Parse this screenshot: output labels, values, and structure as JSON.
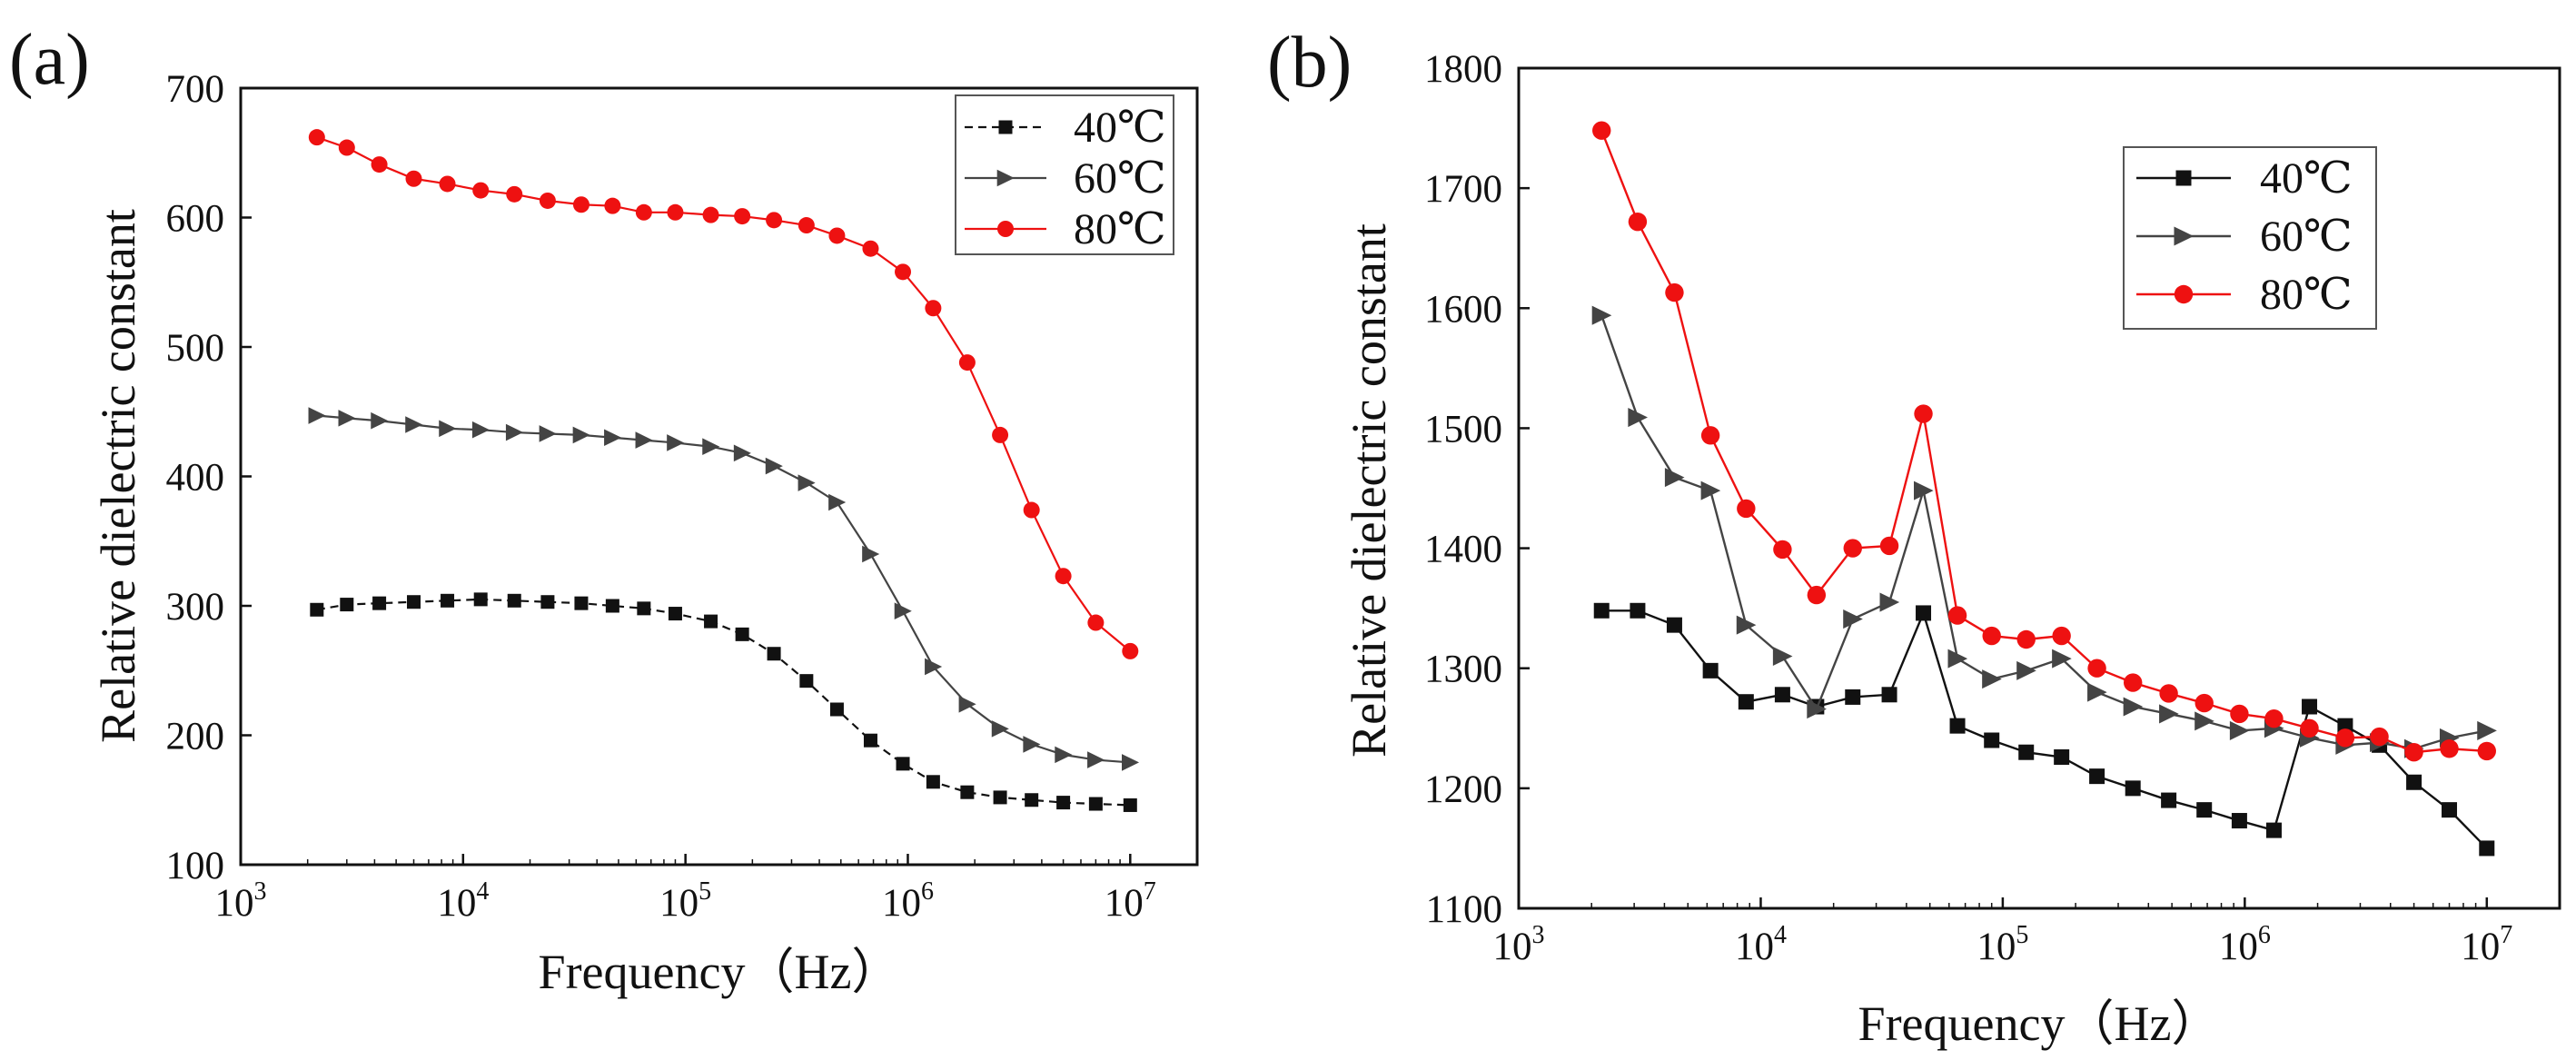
{
  "figure": {
    "panels": [
      "(a)",
      "(b)"
    ]
  },
  "chart_data": [
    {
      "type": "line",
      "panel_label": "(a)",
      "xlabel": "Frequency（Hz）",
      "ylabel": "Relative dielectric constant",
      "xscale": "log",
      "xlim": [
        1000,
        20000000
      ],
      "ylim": [
        100,
        700
      ],
      "xticks": [
        {
          "base": "10",
          "exp": "3",
          "value": 1000
        },
        {
          "base": "10",
          "exp": "4",
          "value": 10000
        },
        {
          "base": "10",
          "exp": "5",
          "value": 100000
        },
        {
          "base": "10",
          "exp": "6",
          "value": 1000000
        },
        {
          "base": "10",
          "exp": "7",
          "value": 10000000
        }
      ],
      "yticks": [
        "100",
        "200",
        "300",
        "400",
        "500",
        "600",
        "700"
      ],
      "legend_position": "top-right",
      "x": [
        2200,
        3000,
        4200,
        6000,
        8500,
        12000,
        17000,
        24000,
        34000,
        47000,
        65000,
        90000,
        130000,
        180000,
        250000,
        350000,
        480000,
        680000,
        950000,
        1300000,
        1850000,
        2600000,
        3600000,
        5000000,
        7000000,
        10000000
      ],
      "series": [
        {
          "name": "40℃",
          "color": "#111111",
          "marker": "square",
          "line": "dashed",
          "values": [
            297,
            301,
            302,
            303,
            304,
            305,
            304,
            303,
            302,
            300,
            298,
            294,
            288,
            278,
            263,
            242,
            220,
            196,
            178,
            164,
            156,
            152,
            150,
            148,
            147,
            146
          ]
        },
        {
          "name": "60℃",
          "color": "#444444",
          "marker": "triangle-right",
          "line": "solid",
          "values": [
            447,
            445,
            443,
            440,
            437,
            436,
            434,
            433,
            432,
            430,
            428,
            426,
            423,
            418,
            408,
            395,
            380,
            340,
            296,
            253,
            224,
            205,
            193,
            185,
            181,
            179
          ]
        },
        {
          "name": "80℃",
          "color": "#ee1111",
          "marker": "circle",
          "line": "solid",
          "values": [
            662,
            654,
            641,
            630,
            626,
            621,
            618,
            613,
            610,
            609,
            604,
            604,
            602,
            601,
            598,
            594,
            586,
            576,
            558,
            530,
            488,
            432,
            374,
            323,
            287,
            265
          ]
        }
      ]
    },
    {
      "type": "line",
      "panel_label": "(b)",
      "xlabel": "Frequency（Hz）",
      "ylabel": "Relative dielectric constant",
      "xscale": "log",
      "xlim": [
        1000,
        20000000
      ],
      "ylim": [
        1100,
        1800
      ],
      "xticks": [
        {
          "base": "10",
          "exp": "3",
          "value": 1000
        },
        {
          "base": "10",
          "exp": "4",
          "value": 10000
        },
        {
          "base": "10",
          "exp": "5",
          "value": 100000
        },
        {
          "base": "10",
          "exp": "6",
          "value": 1000000
        },
        {
          "base": "10",
          "exp": "7",
          "value": 10000000
        }
      ],
      "yticks": [
        "1100",
        "1200",
        "1300",
        "1400",
        "1500",
        "1600",
        "1700",
        "1800"
      ],
      "legend_position": "top-right",
      "x": [
        2200,
        3100,
        4400,
        6200,
        8700,
        12300,
        17000,
        24000,
        34000,
        47000,
        65000,
        90000,
        125000,
        175000,
        245000,
        345000,
        485000,
        680000,
        950000,
        1320000,
        1850000,
        2600000,
        3600000,
        5000000,
        7000000,
        10000000
      ],
      "series": [
        {
          "name": "40℃",
          "color": "#111111",
          "marker": "square",
          "line": "solid",
          "values": [
            1348,
            1348,
            1336,
            1298,
            1272,
            1278,
            1268,
            1276,
            1278,
            1346,
            1252,
            1240,
            1230,
            1226,
            1210,
            1200,
            1190,
            1182,
            1173,
            1165,
            1268,
            1252,
            1236,
            1205,
            1182,
            1150
          ]
        },
        {
          "name": "60℃",
          "color": "#444444",
          "marker": "triangle-right",
          "line": "solid",
          "values": [
            1594,
            1509,
            1459,
            1448,
            1336,
            1310,
            1266,
            1341,
            1355,
            1448,
            1308,
            1291,
            1298,
            1308,
            1280,
            1268,
            1262,
            1256,
            1248,
            1250,
            1242,
            1236,
            1238,
            1233,
            1242,
            1248
          ]
        },
        {
          "name": "80℃",
          "color": "#ee1111",
          "marker": "circle",
          "line": "solid",
          "values": [
            1748,
            1672,
            1613,
            1494,
            1433,
            1399,
            1361,
            1400,
            1402,
            1512,
            1344,
            1327,
            1324,
            1327,
            1300,
            1288,
            1279,
            1271,
            1262,
            1258,
            1250,
            1242,
            1243,
            1230,
            1233,
            1231
          ]
        }
      ]
    }
  ]
}
